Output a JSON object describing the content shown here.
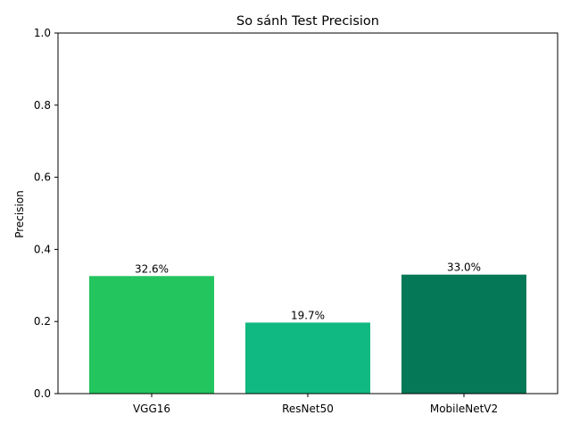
{
  "chart_data": {
    "type": "bar",
    "title": "So sánh Test Precision",
    "xlabel": "",
    "ylabel": "Precision",
    "categories": [
      "VGG16",
      "ResNet50",
      "MobileNetV2"
    ],
    "values": [
      0.326,
      0.197,
      0.33
    ],
    "value_labels": [
      "32.6%",
      "19.7%",
      "33.0%"
    ],
    "bar_colors": [
      "#22c55e",
      "#10b981",
      "#047857"
    ],
    "ylim": [
      0,
      1.0
    ],
    "yticks": [
      0.0,
      0.2,
      0.4,
      0.6,
      0.8,
      1.0
    ],
    "ytick_labels": [
      "0.0",
      "0.2",
      "0.4",
      "0.6",
      "0.8",
      "1.0"
    ],
    "grid": false,
    "legend": null
  }
}
